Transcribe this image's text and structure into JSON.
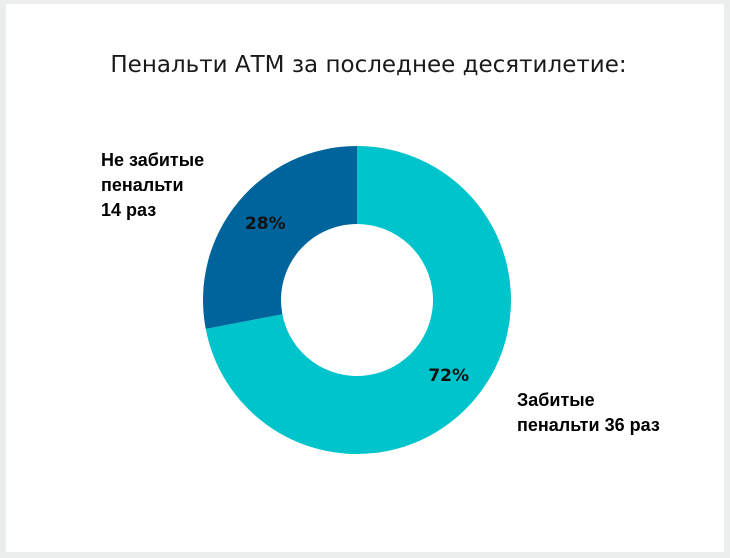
{
  "chart_data": {
    "type": "pie",
    "title": "Пенальти АТМ за последнее десятилетие:",
    "categories": [
      "Забитые пенальти",
      "Не забитые пенальти"
    ],
    "values": [
      36,
      14
    ],
    "percent_labels": [
      "72%",
      "28%"
    ],
    "callouts": [
      [
        "Забитые",
        "пенальти 36 раз"
      ],
      [
        "Не забитые",
        "пенальти",
        "14 раз"
      ]
    ],
    "colors": [
      "#00c4cc",
      "#00649c"
    ]
  }
}
